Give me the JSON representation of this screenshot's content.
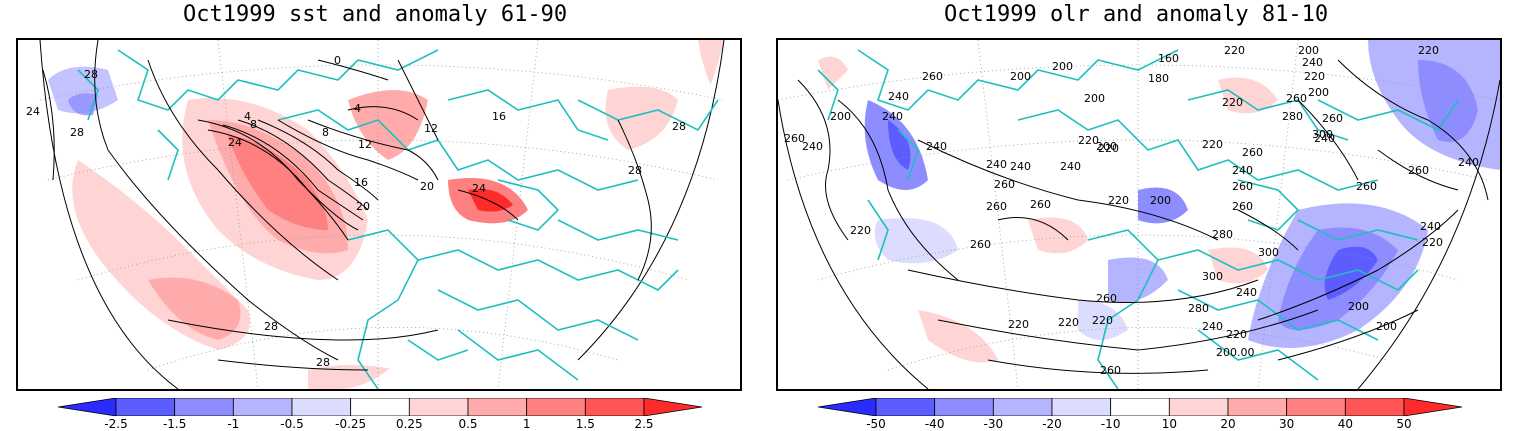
{
  "left_panel": {
    "title": "Oct1999 sst and anomaly 61-90",
    "colorbar": {
      "labels": [
        "-2.5",
        "-1.5",
        "-1",
        "-0.5",
        "-0.25",
        "0.25",
        "0.5",
        "1",
        "1.5",
        "2.5"
      ],
      "colors": [
        "#2b2bff",
        "#5c5cff",
        "#8d8dff",
        "#b4b4ff",
        "#dcdcff",
        "#ffffff",
        "#ffd4d4",
        "#ffabab",
        "#ff8080",
        "#ff5555",
        "#ff2a2a"
      ]
    },
    "contour_labels": [
      "24",
      "28",
      "0",
      "4",
      "4",
      "8",
      "8",
      "12",
      "16",
      "20",
      "24",
      "12",
      "16",
      "20",
      "24",
      "28",
      "28",
      "28",
      "28",
      "28"
    ]
  },
  "right_panel": {
    "title": "Oct1999 olr and anomaly 81-10",
    "colorbar": {
      "labels": [
        "-50",
        "-40",
        "-30",
        "-20",
        "-10",
        "10",
        "20",
        "30",
        "40",
        "50"
      ],
      "colors": [
        "#2b2bff",
        "#5c5cff",
        "#8d8dff",
        "#b4b4ff",
        "#dcdcff",
        "#ffffff",
        "#ffd4d4",
        "#ffabab",
        "#ff8080",
        "#ff5555",
        "#ff2a2a"
      ]
    },
    "contour_labels": [
      "220",
      "200",
      "220",
      "260",
      "240",
      "200",
      "200",
      "180",
      "160",
      "240",
      "220",
      "200",
      "200",
      "220",
      "240",
      "200",
      "260",
      "260",
      "240",
      "240",
      "220",
      "240",
      "220",
      "200",
      "260",
      "280",
      "300",
      "260",
      "240",
      "240",
      "220",
      "260",
      "240",
      "200",
      "220",
      "240",
      "260",
      "260",
      "240",
      "260",
      "260",
      "260",
      "280",
      "300",
      "300",
      "280",
      "240",
      "220",
      "220",
      "200",
      "200",
      "200.00",
      "260",
      "260",
      "260",
      "220",
      "220",
      "240",
      "260",
      "220",
      "240",
      "220"
    ]
  },
  "colors": {
    "coast": "#1fbfbf",
    "contour": "#000000",
    "grid": "#888888"
  }
}
